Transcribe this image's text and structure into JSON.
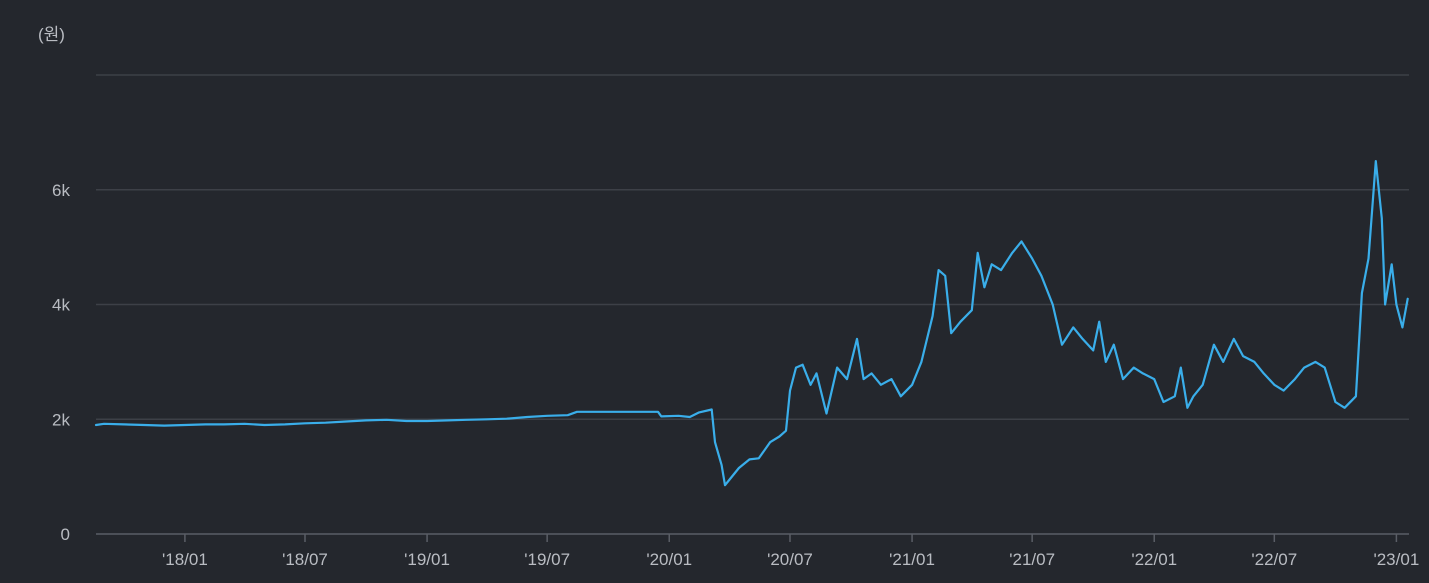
{
  "chart_data": {
    "type": "line",
    "y_unit_label": "(원)",
    "xlabel": "",
    "ylabel": "",
    "ylim": [
      0,
      8000
    ],
    "y_ticks": [
      {
        "value": 0,
        "label": "0"
      },
      {
        "value": 2000,
        "label": "2k"
      },
      {
        "value": 4000,
        "label": "4k"
      },
      {
        "value": 6000,
        "label": "6k"
      },
      {
        "value": 8000,
        "label": ""
      }
    ],
    "x_ticks": [
      {
        "date": "2018-01-01",
        "label": "'18/01"
      },
      {
        "date": "2018-07-01",
        "label": "'18/07"
      },
      {
        "date": "2019-01-01",
        "label": "'19/01"
      },
      {
        "date": "2019-07-01",
        "label": "'19/07"
      },
      {
        "date": "2020-01-01",
        "label": "'20/01"
      },
      {
        "date": "2020-07-01",
        "label": "'20/07"
      },
      {
        "date": "2021-01-01",
        "label": "'21/01"
      },
      {
        "date": "2021-07-01",
        "label": "'21/07"
      },
      {
        "date": "2022-01-01",
        "label": "'22/01"
      },
      {
        "date": "2022-07-01",
        "label": "'22/07"
      },
      {
        "date": "2023-01-01",
        "label": "'23/01"
      }
    ],
    "xlim": [
      "2017-08-20",
      "2023-01-20"
    ],
    "grid": true,
    "legend": "none",
    "colors": {
      "line": "#3aaeea",
      "grid": "#3d4047",
      "axis": "#5a5e66",
      "background": "#24272d"
    },
    "series": [
      {
        "points": [
          [
            "2017-08-20",
            1900
          ],
          [
            "2017-09-01",
            1920
          ],
          [
            "2017-10-01",
            1910
          ],
          [
            "2017-11-01",
            1900
          ],
          [
            "2017-12-01",
            1890
          ],
          [
            "2018-01-01",
            1900
          ],
          [
            "2018-02-01",
            1910
          ],
          [
            "2018-03-01",
            1910
          ],
          [
            "2018-04-01",
            1920
          ],
          [
            "2018-05-01",
            1900
          ],
          [
            "2018-06-01",
            1910
          ],
          [
            "2018-07-01",
            1930
          ],
          [
            "2018-08-01",
            1940
          ],
          [
            "2018-09-01",
            1960
          ],
          [
            "2018-10-01",
            1980
          ],
          [
            "2018-11-01",
            1990
          ],
          [
            "2018-12-01",
            1970
          ],
          [
            "2019-01-01",
            1970
          ],
          [
            "2019-02-01",
            1980
          ],
          [
            "2019-03-01",
            1990
          ],
          [
            "2019-04-01",
            2000
          ],
          [
            "2019-05-01",
            2010
          ],
          [
            "2019-06-01",
            2040
          ],
          [
            "2019-07-01",
            2060
          ],
          [
            "2019-08-01",
            2070
          ],
          [
            "2019-08-15",
            2130
          ],
          [
            "2019-09-01",
            2130
          ],
          [
            "2019-10-01",
            2130
          ],
          [
            "2019-11-01",
            2130
          ],
          [
            "2019-12-15",
            2130
          ],
          [
            "2019-12-20",
            2050
          ],
          [
            "2020-01-15",
            2060
          ],
          [
            "2020-02-01",
            2040
          ],
          [
            "2020-02-15",
            2120
          ],
          [
            "2020-03-05",
            2170
          ],
          [
            "2020-03-10",
            1600
          ],
          [
            "2020-03-20",
            1200
          ],
          [
            "2020-03-25",
            850
          ],
          [
            "2020-04-01",
            950
          ],
          [
            "2020-04-15",
            1150
          ],
          [
            "2020-05-01",
            1300
          ],
          [
            "2020-05-15",
            1320
          ],
          [
            "2020-06-01",
            1600
          ],
          [
            "2020-06-15",
            1700
          ],
          [
            "2020-06-25",
            1800
          ],
          [
            "2020-07-01",
            2500
          ],
          [
            "2020-07-10",
            2900
          ],
          [
            "2020-07-20",
            2950
          ],
          [
            "2020-08-01",
            2600
          ],
          [
            "2020-08-10",
            2800
          ],
          [
            "2020-08-25",
            2100
          ],
          [
            "2020-09-10",
            2900
          ],
          [
            "2020-09-25",
            2700
          ],
          [
            "2020-10-10",
            3400
          ],
          [
            "2020-10-20",
            2700
          ],
          [
            "2020-11-01",
            2800
          ],
          [
            "2020-11-15",
            2600
          ],
          [
            "2020-12-01",
            2700
          ],
          [
            "2020-12-15",
            2400
          ],
          [
            "2021-01-01",
            2600
          ],
          [
            "2021-01-15",
            3000
          ],
          [
            "2021-02-01",
            3800
          ],
          [
            "2021-02-10",
            4600
          ],
          [
            "2021-02-20",
            4500
          ],
          [
            "2021-03-01",
            3500
          ],
          [
            "2021-03-15",
            3700
          ],
          [
            "2021-04-01",
            3900
          ],
          [
            "2021-04-10",
            4900
          ],
          [
            "2021-04-20",
            4300
          ],
          [
            "2021-05-01",
            4700
          ],
          [
            "2021-05-15",
            4600
          ],
          [
            "2021-06-01",
            4900
          ],
          [
            "2021-06-15",
            5100
          ],
          [
            "2021-07-01",
            4800
          ],
          [
            "2021-07-15",
            4500
          ],
          [
            "2021-08-01",
            4000
          ],
          [
            "2021-08-15",
            3300
          ],
          [
            "2021-09-01",
            3600
          ],
          [
            "2021-09-15",
            3400
          ],
          [
            "2021-10-01",
            3200
          ],
          [
            "2021-10-10",
            3700
          ],
          [
            "2021-10-20",
            3000
          ],
          [
            "2021-11-01",
            3300
          ],
          [
            "2021-11-15",
            2700
          ],
          [
            "2021-12-01",
            2900
          ],
          [
            "2021-12-15",
            2800
          ],
          [
            "2022-01-01",
            2700
          ],
          [
            "2022-01-15",
            2300
          ],
          [
            "2022-02-01",
            2400
          ],
          [
            "2022-02-10",
            2900
          ],
          [
            "2022-02-20",
            2200
          ],
          [
            "2022-03-01",
            2400
          ],
          [
            "2022-03-15",
            2600
          ],
          [
            "2022-04-01",
            3300
          ],
          [
            "2022-04-15",
            3000
          ],
          [
            "2022-05-01",
            3400
          ],
          [
            "2022-05-15",
            3100
          ],
          [
            "2022-06-01",
            3000
          ],
          [
            "2022-06-15",
            2800
          ],
          [
            "2022-07-01",
            2600
          ],
          [
            "2022-07-15",
            2500
          ],
          [
            "2022-08-01",
            2700
          ],
          [
            "2022-08-15",
            2900
          ],
          [
            "2022-09-01",
            3000
          ],
          [
            "2022-09-15",
            2900
          ],
          [
            "2022-10-01",
            2300
          ],
          [
            "2022-10-15",
            2200
          ],
          [
            "2022-11-01",
            2400
          ],
          [
            "2022-11-10",
            4200
          ],
          [
            "2022-11-20",
            4800
          ],
          [
            "2022-12-01",
            6500
          ],
          [
            "2022-12-10",
            5500
          ],
          [
            "2022-12-15",
            4000
          ],
          [
            "2022-12-25",
            4700
          ],
          [
            "2023-01-01",
            4000
          ],
          [
            "2023-01-10",
            3600
          ],
          [
            "2023-01-18",
            4100
          ]
        ]
      }
    ]
  }
}
